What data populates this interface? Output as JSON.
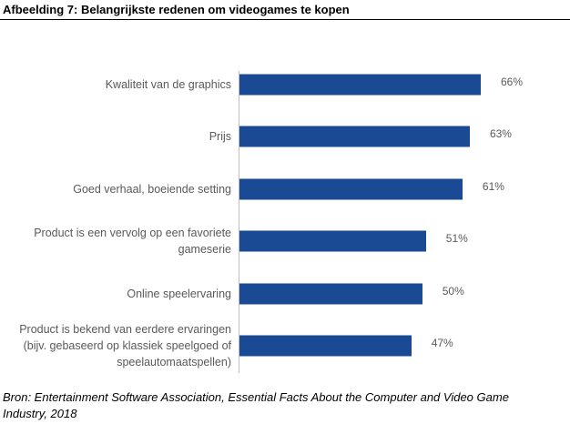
{
  "title": "Afbeelding 7: Belangrijkste redenen om videogames te kopen",
  "source": "Bron: Entertainment Software Association, Essential Facts About the Computer and Video Game Industry, 2018",
  "chart_data": {
    "type": "bar",
    "orientation": "horizontal",
    "title": "Afbeelding 7: Belangrijkste redenen om videogames te kopen",
    "categories": [
      "Kwaliteit van de graphics",
      "Prijs",
      "Goed verhaal, boeiende setting",
      "Product is een vervolg op een favoriete gameserie",
      "Online speelervaring",
      "Product is bekend van eerdere ervaringen (bijv. gebaseerd op klassiek speelgoed of speelautomaatspellen)"
    ],
    "values": [
      66,
      63,
      61,
      51,
      50,
      47
    ],
    "value_labels": [
      "66%",
      "63%",
      "61%",
      "51%",
      "50%",
      "47%"
    ],
    "unit": "%",
    "xlim": [
      0,
      66
    ],
    "bar_color": "#1a4a94",
    "grid": false,
    "legend": "none"
  }
}
